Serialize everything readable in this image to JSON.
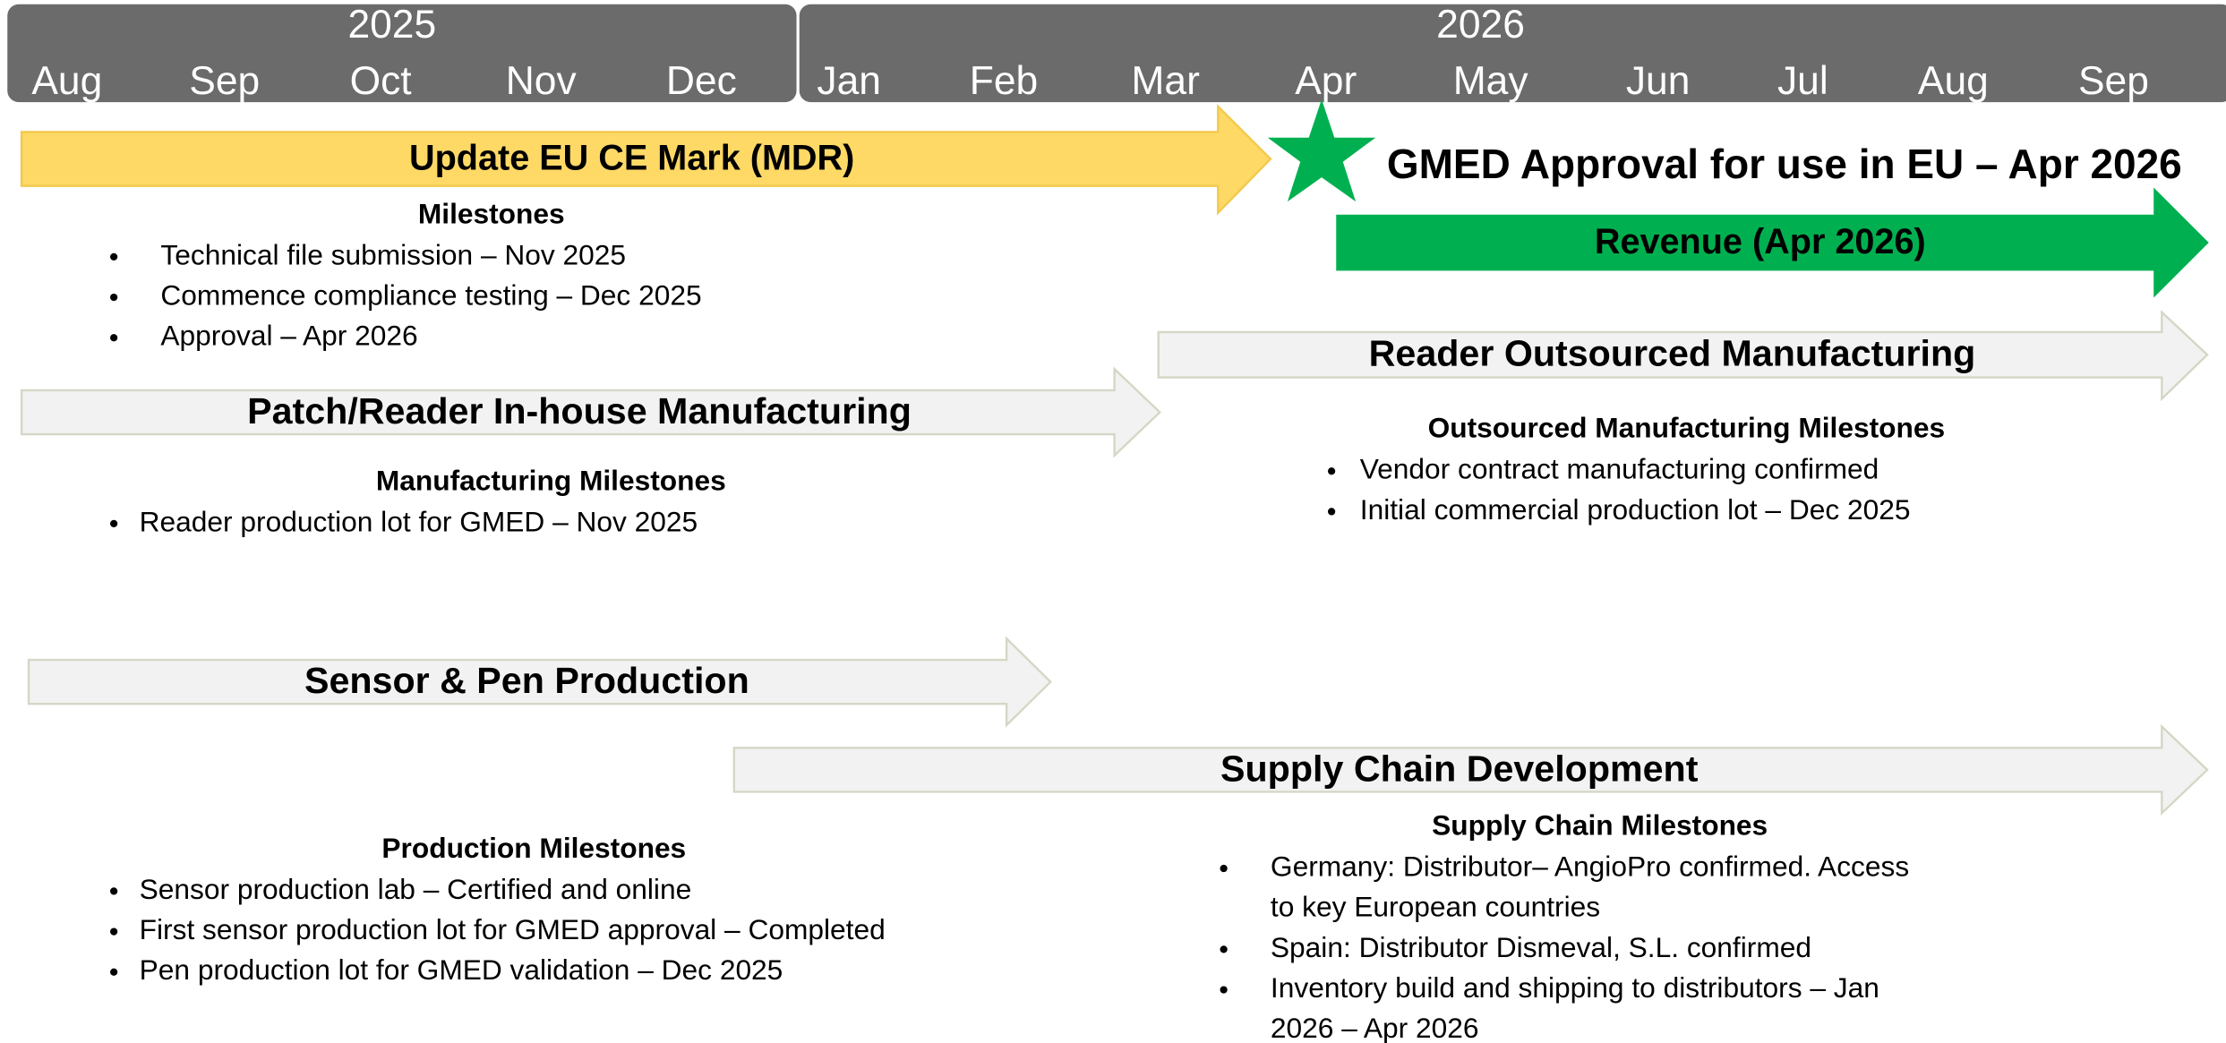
{
  "header": {
    "years": [
      "2025",
      "2026"
    ],
    "months": [
      "Aug",
      "Sep",
      "Oct",
      "Nov",
      "Dec",
      "Jan",
      "Feb",
      "Mar",
      "Apr",
      "May",
      "Jun",
      "Jul",
      "Aug",
      "Sep"
    ]
  },
  "tasks": [
    {
      "label": "Update EU CE Mark (MDR)"
    },
    {
      "label": "Revenue (Apr 2026)"
    },
    {
      "label": "Reader Outsourced Manufacturing"
    },
    {
      "label": "Patch/Reader In-house Manufacturing"
    },
    {
      "label": "Sensor & Pen Production"
    },
    {
      "label": "Supply Chain Development"
    }
  ],
  "milestone_event": {
    "label": "GMED Approval for use in EU – Apr 2026"
  },
  "sections": [
    {
      "title": "Milestones",
      "items": [
        [
          "Technical file submission – Nov 2025"
        ],
        [
          "Commence compliance testing – Dec 2025"
        ],
        [
          "Approval – Apr 2026"
        ]
      ]
    },
    {
      "title": "Manufacturing Milestones",
      "items": [
        [
          "Reader production lot for GMED – Nov 2025"
        ]
      ]
    },
    {
      "title": "Outsourced Manufacturing Milestones",
      "items": [
        [
          "Vendor contract manufacturing confirmed"
        ],
        [
          "Initial commercial production lot – Dec 2025"
        ]
      ]
    },
    {
      "title": "Production Milestones",
      "items": [
        [
          "Sensor production lab  – Certified and online"
        ],
        [
          "First sensor production lot for GMED approval  – Completed"
        ],
        [
          "Pen production lot for GMED validation – Dec 2025"
        ]
      ]
    },
    {
      "title": "Supply Chain Milestones",
      "items": [
        [
          "Germany: Distributor– AngioPro confirmed. Access",
          "to key European countries"
        ],
        [
          "Spain: Distributor Dismeval, S.L. confirmed"
        ],
        [
          "Inventory build and shipping to distributors – Jan",
          "2026 – Apr 2026"
        ]
      ]
    }
  ]
}
